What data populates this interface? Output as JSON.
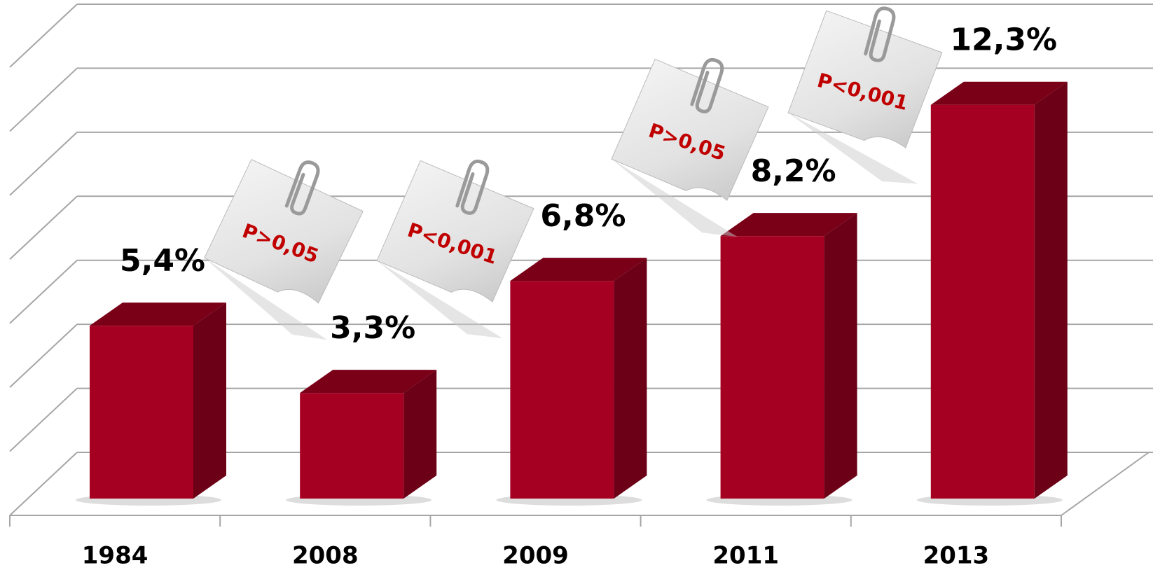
{
  "chart_data": {
    "type": "bar3d",
    "categories": [
      "1984",
      "2008",
      "2009",
      "2011",
      "2013"
    ],
    "values": [
      5.4,
      3.3,
      6.8,
      8.2,
      12.3
    ],
    "value_labels": [
      "5,4%",
      "3,3%",
      "6,8%",
      "8,2%",
      "12,3%"
    ],
    "annotations": [
      "P>0,05",
      "P<0,001",
      "P>0,05",
      "P<0,001"
    ],
    "color": "#a50021",
    "ylim": [
      0,
      14
    ],
    "yticks": [
      0,
      2,
      4,
      6,
      8,
      10,
      12,
      14
    ],
    "grid": true
  }
}
